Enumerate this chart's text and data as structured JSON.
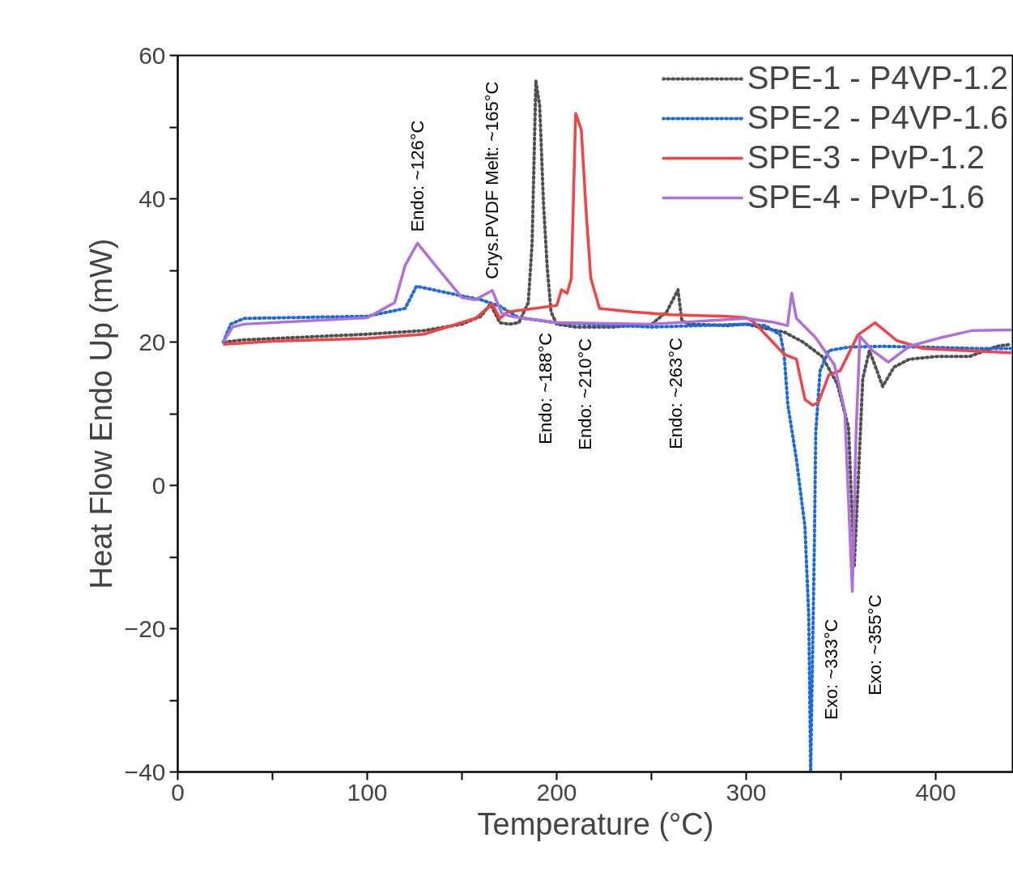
{
  "chart_data": {
    "type": "line",
    "xlabel": "Temperature (°C)",
    "ylabel": "Heat Flow Endo Up (mW)",
    "xlim": [
      0,
      441
    ],
    "ylim": [
      -40,
      60
    ],
    "xticks": [
      0,
      {
        "value": 50,
        "label": null
      },
      100,
      {
        "value": 150,
        "label": null
      },
      200,
      {
        "value": 250,
        "label": null
      },
      300,
      {
        "value": 350,
        "label": null
      },
      400
    ],
    "yticks": [
      -40,
      {
        "value": -30,
        "label": null
      },
      -20,
      {
        "value": -10,
        "label": null
      },
      0,
      {
        "value": 10,
        "label": null
      },
      20,
      {
        "value": 30,
        "label": null
      },
      40,
      {
        "value": 50,
        "label": null
      },
      60
    ],
    "grid": false,
    "legend": "top right",
    "series": [
      {
        "name": "SPE-1 - P4VP-1.2",
        "color": "#505050",
        "line_style": "dotted",
        "x": [
          24.4,
          34.6,
          100,
          130,
          150,
          160,
          165,
          170,
          175,
          180,
          185,
          187,
          189,
          191,
          193,
          195,
          197,
          200,
          210,
          230,
          250,
          258,
          264,
          266,
          270,
          290,
          300,
          310,
          320,
          330,
          340,
          348,
          354,
          357,
          359,
          361.5,
          365,
          369,
          372,
          378,
          386,
          401,
          418,
          432,
          440
        ],
        "values": [
          20,
          20.3,
          21.1,
          21.6,
          22.5,
          23.6,
          25.3,
          22.7,
          22.5,
          22.7,
          25.5,
          33.8,
          56.4,
          53,
          39.4,
          30.4,
          24.2,
          22.5,
          22.1,
          22.1,
          22.5,
          24.2,
          27.3,
          23,
          22.5,
          22.3,
          22.5,
          21.9,
          21.4,
          20,
          18,
          14.2,
          8.1,
          -11.4,
          -0.1,
          14.9,
          18.8,
          16,
          13.8,
          16.5,
          17.6,
          18,
          18,
          19.4,
          19.7
        ]
      },
      {
        "name": "SPE-2 - P4VP-1.6",
        "color": "#1a6be0",
        "line_style": "dotted",
        "x": [
          24,
          28,
          35,
          100,
          120,
          126,
          140,
          160,
          170,
          180,
          200,
          250,
          300,
          310,
          318,
          320,
          322,
          326.5,
          331,
          333,
          334,
          336,
          336.7,
          339,
          343.5,
          354,
          372,
          393,
          422,
          440
        ],
        "values": [
          20,
          22.5,
          23.3,
          23.6,
          24.7,
          27.8,
          27,
          25.9,
          25,
          23.4,
          22.7,
          22.1,
          22.5,
          22.3,
          21,
          18.3,
          11.2,
          3.6,
          -5.8,
          -18.2,
          -40,
          -7.7,
          7.5,
          16,
          18.8,
          19.3,
          19.4,
          19.3,
          19.1,
          19.1
        ]
      },
      {
        "name": "SPE-3 - PvP-1.2",
        "color": "#f24444",
        "line_style": "solid",
        "x": [
          24,
          50,
          100,
          130,
          157,
          166,
          170,
          174,
          200,
          202.5,
          205.5,
          207.7,
          210,
          213,
          215.5,
          218,
          222.6,
          240,
          260,
          290,
          300,
          304,
          320,
          326.5,
          331,
          335,
          338,
          343.6,
          349.6,
          359,
          368,
          379.5,
          393.6,
          415,
          440
        ],
        "values": [
          19.7,
          20.1,
          20.5,
          21.1,
          23.3,
          25.3,
          23.3,
          24.2,
          25.1,
          27.3,
          26.8,
          28.9,
          51.9,
          49.6,
          38.3,
          28.9,
          24.7,
          24.2,
          23.8,
          23.6,
          23.4,
          22.8,
          18.3,
          17.6,
          12,
          11.2,
          11.5,
          15.4,
          16,
          21,
          22.7,
          20.2,
          19.1,
          18.8,
          18.5
        ]
      },
      {
        "name": "SPE-4 - PvP-1.6",
        "color": "#b06fdc",
        "line_style": "solid",
        "x": [
          24,
          29,
          35,
          100,
          114.5,
          120,
          126.5,
          136,
          150,
          157,
          166,
          171,
          175.6,
          200,
          250,
          300,
          313.7,
          321.8,
          324,
          326.5,
          336.7,
          346.6,
          352,
          356,
          358,
          360,
          366.7,
          375,
          386,
          401,
          419,
          440
        ],
        "values": [
          20,
          22.1,
          22.5,
          23.4,
          25.5,
          30.7,
          33.8,
          30.7,
          26.2,
          25.9,
          27.2,
          24,
          23.6,
          22.7,
          22.5,
          23.3,
          22.8,
          22.3,
          26.8,
          23.3,
          20.6,
          16.8,
          10.4,
          -14.8,
          7.5,
          20.8,
          18.8,
          17.2,
          19.4,
          20.5,
          21.6,
          21.7
        ]
      }
    ],
    "annotations": [
      {
        "text": "Endo: ~126°C",
        "x": 126.5,
        "y": 33.8
      },
      {
        "text": "Crys.PVDF Melt: ~165°C",
        "x": 166,
        "y": 27.2
      },
      {
        "text": "Endo: ~188°C",
        "x": 194,
        "y": 22.9
      },
      {
        "text": "Endo: ~210°C",
        "x": 215,
        "y": 22.1
      },
      {
        "text": "Endo: ~263°C",
        "x": 263,
        "y": 22.2
      },
      {
        "text": "Exo: ~333°C",
        "x": 333,
        "y": -18.2
      },
      {
        "text": "Exo: ~355°C",
        "x": 356,
        "y": -14.8
      }
    ]
  }
}
